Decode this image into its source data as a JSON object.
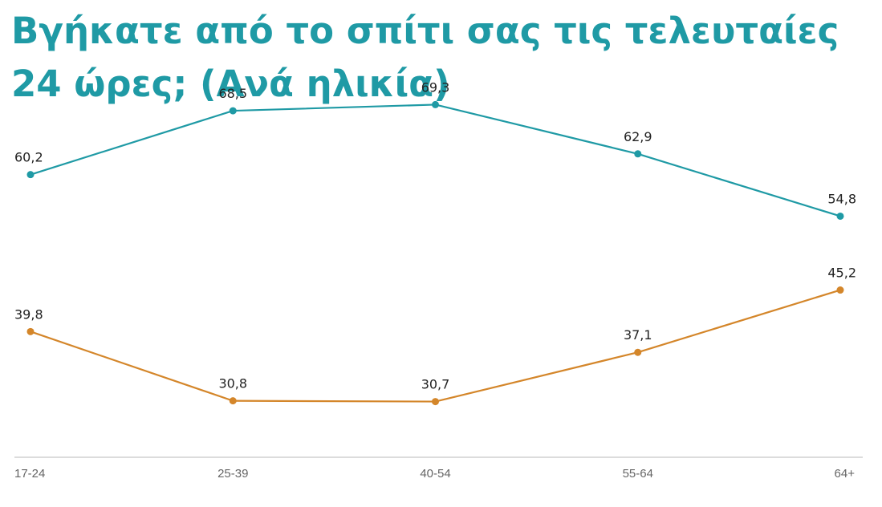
{
  "title_lines": [
    "Βγήκατε από το σπίτι σας τις τελευταίες",
    "24 ώρες; (Ανά ηλικία)"
  ],
  "chart_data": {
    "type": "line",
    "title": "Βγήκατε από το σπίτι σας τις τελευταίες 24 ώρες; (Ανά ηλικία)",
    "categories": [
      "17-24",
      "25-39",
      "40-54",
      "55-64",
      "64+"
    ],
    "series": [
      {
        "color": "#1f9aa5",
        "values": [
          60.2,
          68.5,
          69.3,
          62.9,
          54.8
        ],
        "labels": [
          "60,2",
          "68,5",
          "69,3",
          "62,9",
          "54,8"
        ]
      },
      {
        "color": "#d4862a",
        "values": [
          39.8,
          30.8,
          30.7,
          37.1,
          45.2
        ],
        "labels": [
          "39,8",
          "30,8",
          "30,7",
          "37,1",
          "45,2"
        ]
      }
    ],
    "xlabel": "",
    "ylabel": "",
    "ylim": [
      0,
      100
    ],
    "grid": false,
    "legend": "none"
  }
}
